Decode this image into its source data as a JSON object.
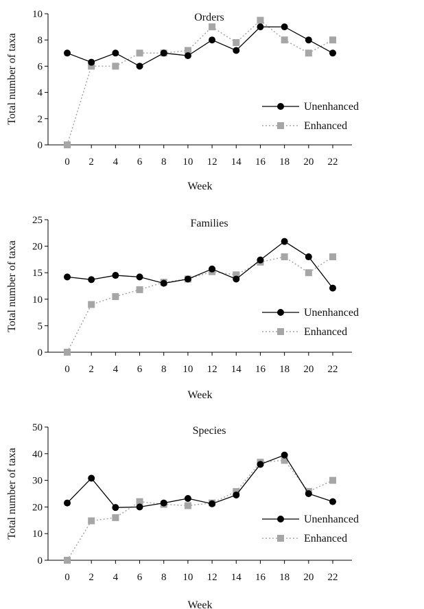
{
  "colors": {
    "unenhanced": "#000000",
    "enhanced": "#a6a6a6",
    "axis": "#000000"
  },
  "chart_data": [
    {
      "type": "line",
      "title": "Orders",
      "xlabel": "Week",
      "ylabel": "Total number of taxa",
      "x": [
        0,
        2,
        4,
        6,
        8,
        10,
        12,
        14,
        16,
        18,
        20,
        22
      ],
      "xlim": [
        0,
        22
      ],
      "ylim": [
        0,
        10
      ],
      "yticks": [
        0,
        2,
        4,
        6,
        8,
        10
      ],
      "grid": false,
      "legend_position": "right",
      "series": [
        {
          "name": "Unenhanced",
          "marker": "circle",
          "line": "solid",
          "values": [
            7,
            6.3,
            7,
            6,
            7,
            6.8,
            8,
            7.2,
            9,
            9,
            8,
            7
          ]
        },
        {
          "name": "Enhanced",
          "marker": "square",
          "line": "dotted",
          "values": [
            0,
            6,
            6,
            7,
            7,
            7.2,
            9,
            7.8,
            9.5,
            8,
            7,
            8
          ]
        }
      ]
    },
    {
      "type": "line",
      "title": "Families",
      "xlabel": "Week",
      "ylabel": "Total number of taxa",
      "x": [
        0,
        2,
        4,
        6,
        8,
        10,
        12,
        14,
        16,
        18,
        20,
        22
      ],
      "xlim": [
        0,
        22
      ],
      "ylim": [
        0,
        25
      ],
      "yticks": [
        0,
        5,
        10,
        15,
        20,
        25
      ],
      "grid": false,
      "legend_position": "right",
      "series": [
        {
          "name": "Unenhanced",
          "marker": "circle",
          "line": "solid",
          "values": [
            14.2,
            13.7,
            14.5,
            14.2,
            13,
            13.8,
            15.7,
            13.8,
            17.4,
            20.9,
            18,
            12.1
          ]
        },
        {
          "name": "Enhanced",
          "marker": "square",
          "line": "dotted",
          "values": [
            0,
            9,
            10.5,
            11.8,
            13.2,
            13.8,
            15.2,
            14.6,
            17,
            18,
            15,
            18
          ]
        }
      ]
    },
    {
      "type": "line",
      "title": "Species",
      "xlabel": "Week",
      "ylabel": "Total number of taxa",
      "x": [
        0,
        2,
        4,
        6,
        8,
        10,
        12,
        14,
        16,
        18,
        20,
        22
      ],
      "xlim": [
        0,
        22
      ],
      "ylim": [
        0,
        50
      ],
      "yticks": [
        0,
        10,
        20,
        30,
        40,
        50
      ],
      "grid": false,
      "legend_position": "right",
      "series": [
        {
          "name": "Unenhanced",
          "marker": "circle",
          "line": "solid",
          "values": [
            21.5,
            30.8,
            19.8,
            20,
            21.5,
            23.2,
            21.2,
            24.5,
            36,
            39.5,
            25,
            22
          ]
        },
        {
          "name": "Enhanced",
          "marker": "square",
          "line": "dotted",
          "values": [
            0,
            14.8,
            16,
            22,
            21,
            20.5,
            21.5,
            25.8,
            36.8,
            37.5,
            25.8,
            30
          ]
        }
      ]
    }
  ]
}
